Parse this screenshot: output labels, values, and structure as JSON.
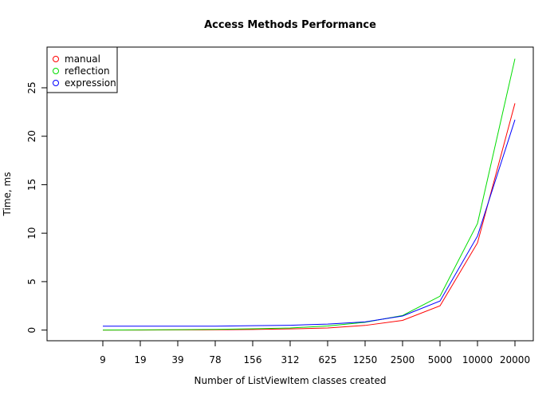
{
  "chart_data": {
    "type": "line",
    "title": "Access Methods Performance",
    "xlabel": "Number of ListViewItem classes created",
    "ylabel": "Time, ms",
    "categories": [
      "9",
      "19",
      "39",
      "78",
      "156",
      "312",
      "625",
      "1250",
      "2500",
      "5000",
      "10000",
      "20000"
    ],
    "yticks": [
      0,
      5,
      10,
      15,
      20,
      25
    ],
    "ylim": [
      -1.1,
      29.2
    ],
    "legend_position": "top-left",
    "series": [
      {
        "name": "manual",
        "color": "#ff0000",
        "values": [
          0.0,
          0.0,
          0.02,
          0.03,
          0.06,
          0.12,
          0.22,
          0.48,
          1.0,
          2.5,
          9.0,
          23.4
        ]
      },
      {
        "name": "reflection",
        "color": "#00dd00",
        "values": [
          0.0,
          0.02,
          0.04,
          0.07,
          0.13,
          0.22,
          0.42,
          0.8,
          1.5,
          3.5,
          11.0,
          28.0
        ]
      },
      {
        "name": "expression",
        "color": "#0000ff",
        "values": [
          0.4,
          0.4,
          0.4,
          0.4,
          0.45,
          0.5,
          0.62,
          0.85,
          1.45,
          3.0,
          9.7,
          21.7
        ]
      }
    ]
  }
}
